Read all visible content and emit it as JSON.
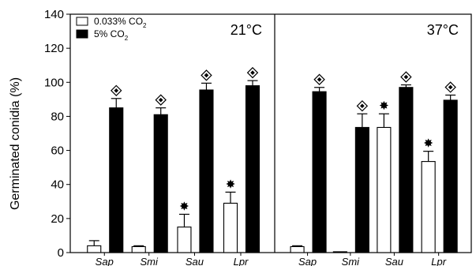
{
  "chart_data": {
    "type": "bar",
    "ylabel": "Germinated conidia (%)",
    "ylim": [
      0,
      140
    ],
    "yticks": [
      0,
      20,
      40,
      60,
      80,
      100,
      120,
      140
    ],
    "legend": {
      "position": "top-left",
      "entries": [
        {
          "label": "0.033% CO",
          "sub": "2",
          "color": "#ffffff"
        },
        {
          "label": "5% CO",
          "sub": "2",
          "color": "#000000"
        }
      ]
    },
    "panels": [
      {
        "label": "21°C",
        "categories": [
          "Sap",
          "Smi",
          "Sau",
          "Lpr"
        ],
        "series": [
          {
            "name": "0.033% CO2",
            "values": [
              4,
              3.5,
              15,
              29
            ],
            "errors": [
              3,
              0.5,
              7.5,
              6.5
            ],
            "star": [
              false,
              false,
              true,
              true
            ]
          },
          {
            "name": "5% CO2",
            "values": [
              85,
              81,
              95.5,
              98
            ],
            "errors": [
              5.5,
              4,
              4,
              3
            ],
            "diamond": [
              true,
              true,
              true,
              true
            ]
          }
        ]
      },
      {
        "label": "37°C",
        "categories": [
          "Sap",
          "Smi",
          "Sau",
          "Lpr"
        ],
        "series": [
          {
            "name": "0.033% CO2",
            "values": [
              3.5,
              0.5,
              73.5,
              53.5
            ],
            "errors": [
              0.5,
              0,
              8,
              6
            ],
            "star": [
              false,
              false,
              true,
              true
            ]
          },
          {
            "name": "5% CO2",
            "values": [
              94.5,
              73.5,
              97,
              89.5
            ],
            "errors": [
              2.5,
              8,
              1.5,
              3
            ],
            "diamond": [
              true,
              true,
              true,
              true
            ]
          }
        ]
      }
    ]
  }
}
